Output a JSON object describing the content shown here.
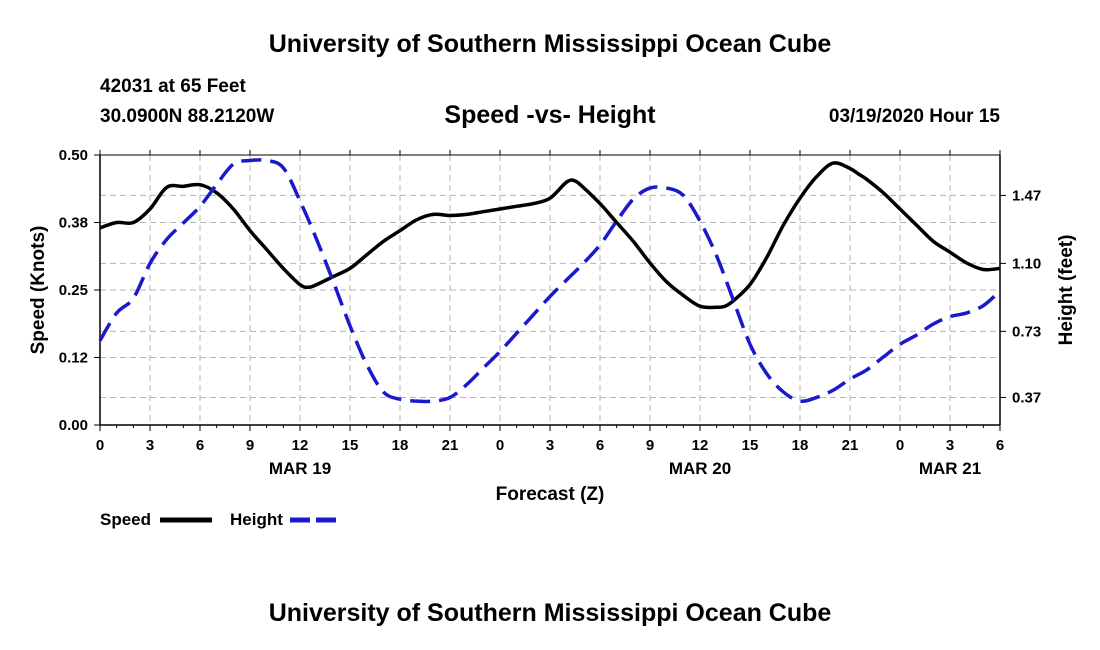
{
  "header": {
    "title": "University of Southern Mississippi Ocean Cube",
    "station": "42031 at 65 Feet",
    "coords": "30.0900N 88.2120W",
    "chart_title": "Speed -vs- Height",
    "datetime": "03/19/2020 Hour 15"
  },
  "footer": {
    "title": "University of Southern Mississippi Ocean Cube"
  },
  "legend": {
    "speed_label": "Speed",
    "height_label": "Height"
  },
  "colors": {
    "speed": "#000000",
    "height": "#1a1acc",
    "grid": "#b4b4b4"
  },
  "chart_data": {
    "type": "line",
    "title": "Speed -vs- Height",
    "xlabel": "Forecast (Z)",
    "ylabel": "Speed (Knots)",
    "y2label": "Height (feet)",
    "xlim": [
      0,
      54
    ],
    "ylim": [
      0,
      0.5
    ],
    "y2lim": [
      0.22,
      1.69
    ],
    "x_ticks": [
      0,
      3,
      6,
      9,
      12,
      15,
      18,
      21,
      24,
      27,
      30,
      33,
      36,
      39,
      42,
      45,
      48,
      51,
      54
    ],
    "x_tick_labels": [
      "0",
      "3",
      "6",
      "9",
      "12",
      "15",
      "18",
      "21",
      "0",
      "3",
      "6",
      "9",
      "12",
      "15",
      "18",
      "21",
      "0",
      "3",
      "6"
    ],
    "date_labels": [
      {
        "x": 12,
        "label": "MAR 19"
      },
      {
        "x": 36,
        "label": "MAR 20"
      },
      {
        "x": 51,
        "label": "MAR 21"
      }
    ],
    "y_ticks": [
      0.0,
      0.125,
      0.25,
      0.375,
      0.5
    ],
    "y_tick_labels": [
      "0.00",
      "0.12",
      "0.25",
      "0.38",
      "0.50"
    ],
    "y2_ticks": [
      0.37,
      0.73,
      1.1,
      1.47
    ],
    "y2_tick_labels": [
      "0.37",
      "0.73",
      "1.10",
      "1.47"
    ],
    "series": [
      {
        "name": "Speed",
        "axis": "left",
        "style": "solid",
        "x": [
          0,
          1,
          2,
          3,
          4,
          5,
          6,
          7,
          8,
          9,
          10,
          11,
          12,
          12.5,
          13,
          14,
          15,
          16,
          17,
          18,
          19,
          20,
          21,
          22,
          23,
          24,
          25,
          26,
          27,
          28,
          28.5,
          29,
          30,
          31,
          32,
          33,
          34,
          35,
          36,
          37,
          37.5,
          38,
          39,
          40,
          41,
          42,
          43,
          44,
          45,
          45.5,
          46,
          47,
          48,
          49,
          50,
          51,
          52,
          53,
          54
        ],
        "values": [
          0.365,
          0.375,
          0.375,
          0.4,
          0.44,
          0.442,
          0.445,
          0.43,
          0.4,
          0.36,
          0.325,
          0.29,
          0.26,
          0.255,
          0.26,
          0.275,
          0.29,
          0.315,
          0.34,
          0.36,
          0.38,
          0.39,
          0.388,
          0.39,
          0.395,
          0.4,
          0.405,
          0.41,
          0.42,
          0.45,
          0.452,
          0.44,
          0.41,
          0.375,
          0.34,
          0.3,
          0.265,
          0.24,
          0.22,
          0.218,
          0.22,
          0.23,
          0.26,
          0.31,
          0.37,
          0.42,
          0.46,
          0.485,
          0.475,
          0.465,
          0.455,
          0.43,
          0.4,
          0.37,
          0.34,
          0.32,
          0.3,
          0.288,
          0.29
        ]
      },
      {
        "name": "Height",
        "axis": "right",
        "style": "dashed",
        "x": [
          0,
          1,
          2,
          3,
          4,
          5,
          6,
          7,
          8,
          9,
          10,
          11,
          12,
          13,
          14,
          15,
          16,
          17,
          18,
          19,
          20,
          21,
          22,
          23,
          24,
          25,
          26,
          27,
          28,
          29,
          30,
          31,
          32,
          33,
          34,
          35,
          36,
          37,
          38,
          39,
          40,
          41,
          42,
          43,
          44,
          45,
          46,
          47,
          48,
          49,
          50,
          51,
          52,
          53,
          54
        ],
        "values": [
          0.68,
          0.83,
          0.91,
          1.1,
          1.23,
          1.32,
          1.41,
          1.53,
          1.64,
          1.66,
          1.66,
          1.62,
          1.44,
          1.23,
          1.0,
          0.76,
          0.55,
          0.4,
          0.36,
          0.35,
          0.35,
          0.37,
          0.44,
          0.53,
          0.62,
          0.72,
          0.82,
          0.92,
          1.01,
          1.1,
          1.2,
          1.33,
          1.45,
          1.51,
          1.51,
          1.47,
          1.33,
          1.14,
          0.9,
          0.66,
          0.5,
          0.4,
          0.35,
          0.37,
          0.41,
          0.47,
          0.52,
          0.59,
          0.66,
          0.71,
          0.77,
          0.81,
          0.83,
          0.87,
          0.95
        ]
      }
    ]
  }
}
